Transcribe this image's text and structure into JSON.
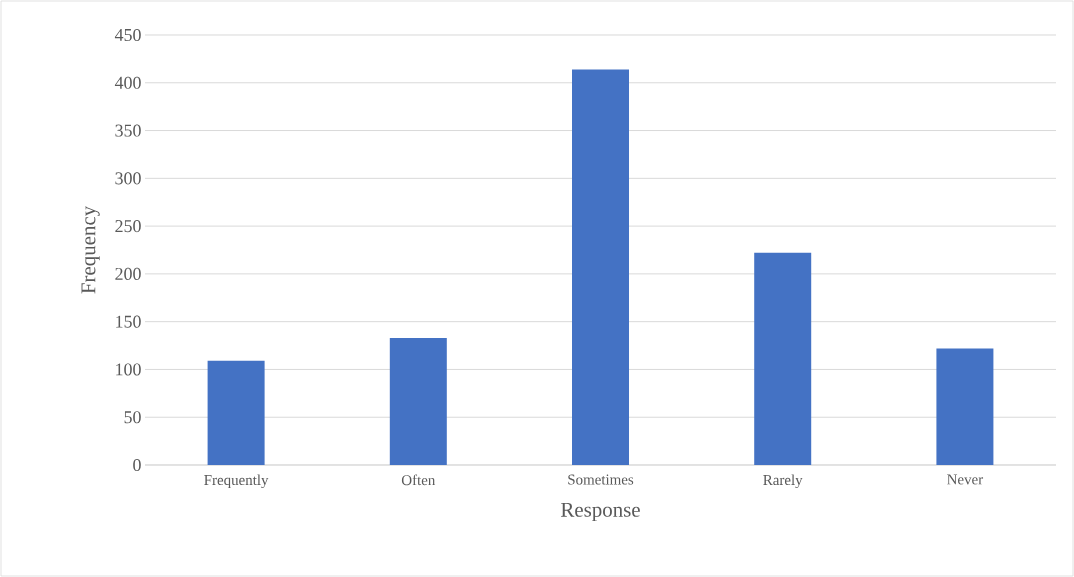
{
  "chart_data": {
    "type": "bar",
    "xlabel": "Response",
    "ylabel": "Frequency",
    "categories": [
      "Frequently",
      "Often",
      "Sometimes",
      "Rarely",
      "Never"
    ],
    "values": [
      109,
      133,
      414,
      222,
      122
    ],
    "color": "#4472c4",
    "ylim": [
      0,
      450
    ],
    "yticks": [
      0,
      50,
      100,
      150,
      200,
      250,
      300,
      350,
      400,
      450
    ],
    "grid": "y"
  }
}
